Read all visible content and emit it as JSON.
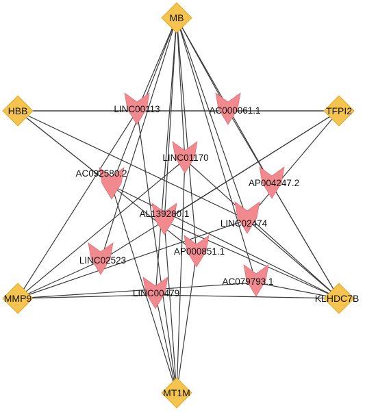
{
  "genes": {
    "MB": "MB",
    "HBB": "HBB",
    "TFPI2": "TFPI2",
    "MMP9": "MMP9",
    "KLHDC7B": "KLHDC7B",
    "MT1M": "MT1M"
  },
  "lncrnas": {
    "LINC00113": "LINC00113",
    "AC000061_1": "AC000061.1",
    "LINC01170": "LINC01170",
    "AC092580_2": "AC092580.2",
    "AP004247_2": "AP004247.2",
    "AL139280_1": "AL139280.1",
    "LINC02474": "LINC02474",
    "LINC02523": "LINC02523",
    "AP000851_1": "AP000851.1",
    "AC079793_1": "AC079793.1",
    "LINC00479": "LINC00479"
  },
  "colors": {
    "gene_node": "#f5c44f",
    "lncrna_node": "#f08a8f",
    "edge": "#3a3a3a"
  },
  "shapes": {
    "gene_node": "diamond",
    "lncrna_node": "chevron-arrow"
  },
  "edges": [
    [
      "MB",
      "LINC00113"
    ],
    [
      "MB",
      "AC000061.1"
    ],
    [
      "MB",
      "LINC01170"
    ],
    [
      "MB",
      "AC092580.2"
    ],
    [
      "MB",
      "AP004247.2"
    ],
    [
      "MB",
      "AL139280.1"
    ],
    [
      "MB",
      "LINC02474"
    ],
    [
      "MB",
      "LINC02523"
    ],
    [
      "MB",
      "AP000851.1"
    ],
    [
      "MB",
      "AC079793.1"
    ],
    [
      "MB",
      "LINC00479"
    ],
    [
      "HBB",
      "LINC00113"
    ],
    [
      "HBB",
      "AC000061.1"
    ],
    [
      "HBB",
      "AC092580.2"
    ],
    [
      "HBB",
      "LINC02474"
    ],
    [
      "HBB",
      "AP000851.1"
    ],
    [
      "TFPI2",
      "LINC00113"
    ],
    [
      "TFPI2",
      "AC000061.1"
    ],
    [
      "TFPI2",
      "LINC02474"
    ],
    [
      "TFPI2",
      "LINC02523"
    ],
    [
      "TFPI2",
      "AL139280.1"
    ],
    [
      "MMP9",
      "LINC02523"
    ],
    [
      "MMP9",
      "LINC00479"
    ],
    [
      "MMP9",
      "AC079793.1"
    ],
    [
      "MMP9",
      "LINC00113"
    ],
    [
      "MMP9",
      "LINC01170"
    ],
    [
      "MMP9",
      "LINC02474"
    ],
    [
      "KLHDC7B",
      "AC079793.1"
    ],
    [
      "KLHDC7B",
      "LINC00479"
    ],
    [
      "KLHDC7B",
      "LINC02474"
    ],
    [
      "KLHDC7B",
      "AC000061.1"
    ],
    [
      "KLHDC7B",
      "AC092580.2"
    ],
    [
      "KLHDC7B",
      "AP004247.2"
    ],
    [
      "KLHDC7B",
      "LINC01170"
    ],
    [
      "KLHDC7B",
      "AL139280.1"
    ],
    [
      "MT1M",
      "LINC00479"
    ],
    [
      "MT1M",
      "AC092580.2"
    ],
    [
      "MT1M",
      "AP000851.1"
    ],
    [
      "MT1M",
      "LINC01170"
    ],
    [
      "MT1M",
      "AL139280.1"
    ],
    [
      "MT1M",
      "LINC00113"
    ]
  ]
}
